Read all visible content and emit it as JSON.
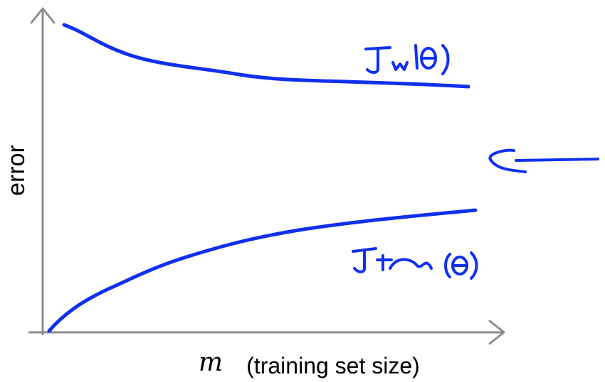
{
  "chart_data": {
    "type": "line",
    "ylabel": "error",
    "xlabel_symbol": "m",
    "xlabel_text": "(training set size)",
    "series": [
      {
        "name": "J_cv(θ)",
        "handwritten_label": "Jcv(θ)",
        "x": [
          0.05,
          0.12,
          0.25,
          0.4,
          0.6,
          0.8,
          1.0
        ],
        "y": [
          0.98,
          0.92,
          0.86,
          0.83,
          0.815,
          0.812,
          0.81
        ]
      },
      {
        "name": "J_train(θ)",
        "handwritten_label": "Jtrain(θ)",
        "x": [
          0.0,
          0.05,
          0.12,
          0.25,
          0.4,
          0.6,
          0.8,
          1.0
        ],
        "y": [
          0.0,
          0.07,
          0.15,
          0.25,
          0.32,
          0.38,
          0.42,
          0.45
        ]
      }
    ],
    "annotation": "hand-drawn arrow pointing at the gap between the curves",
    "grid": false,
    "colors": {
      "curve": "#1030f0",
      "axis": "#8c8c8c"
    }
  }
}
